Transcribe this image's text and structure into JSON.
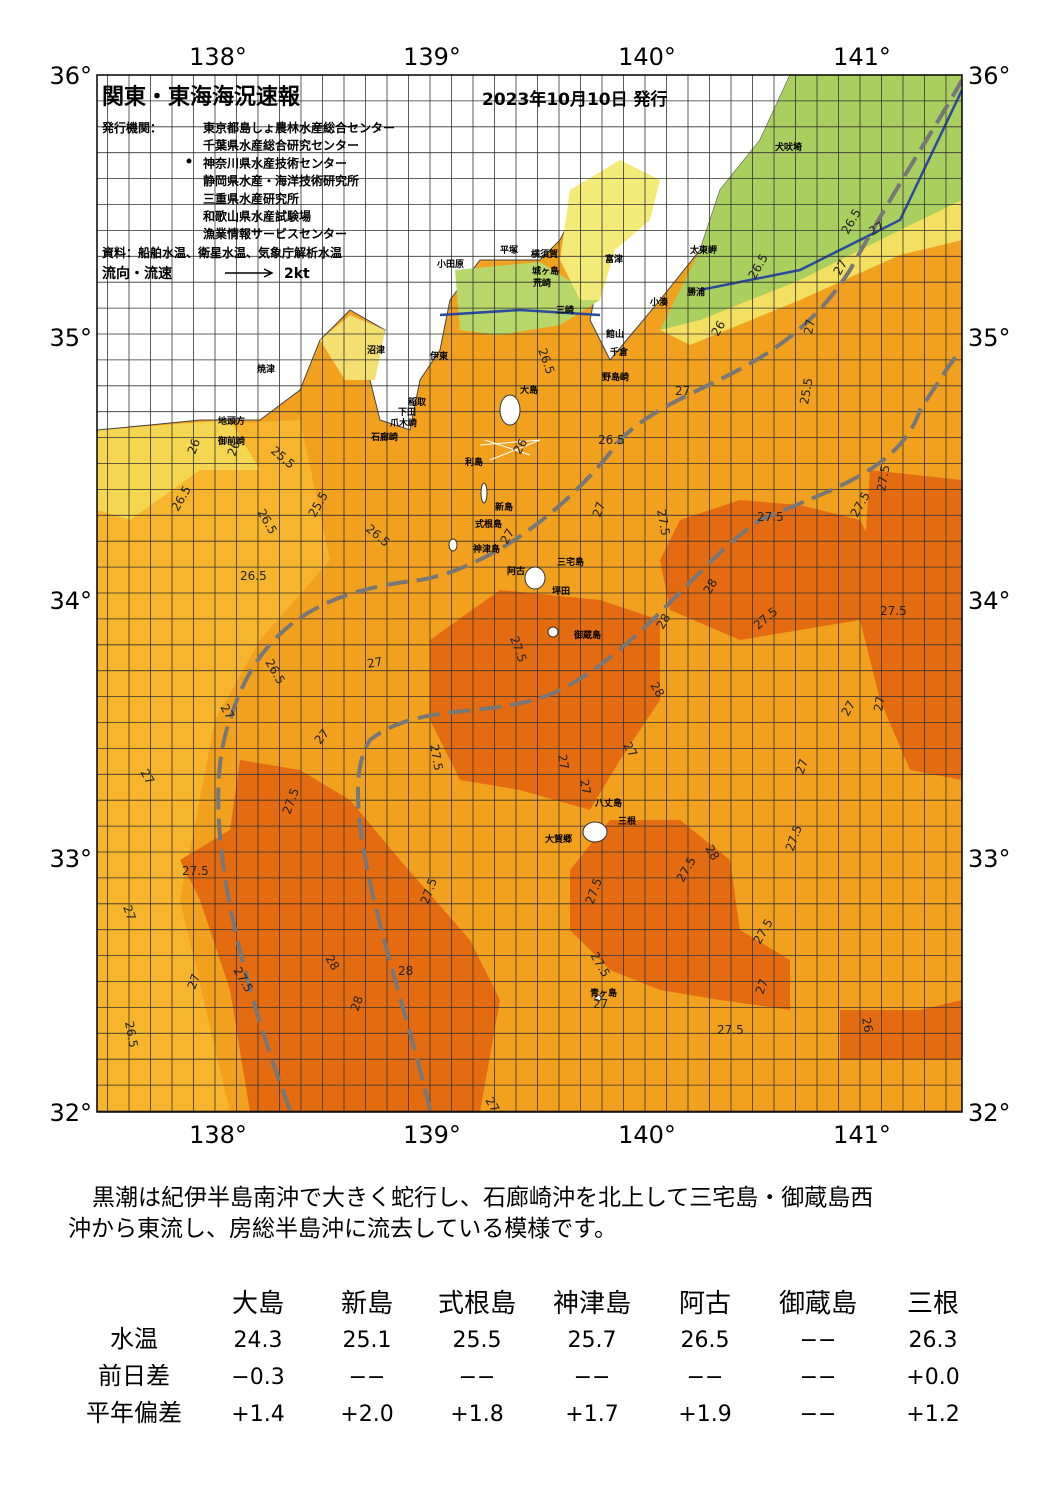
{
  "header": {
    "title": "関東・東海海況速報",
    "date": "2023年10月10日 発行",
    "issuer_label": "発行機関：",
    "issuers": [
      "東京都島しょ農林水産総合センター",
      "千葉県水産総合研究センター",
      "神奈川県水産技術センター",
      "静岡県水産・海洋技術研究所",
      "三重県水産研究所",
      "和歌山県水産試験場",
      "漁業情報サービスセンター"
    ],
    "source": "資料：船舶水温、衛星水温、気象庁解析水温",
    "flow_label": "流向・流速",
    "flow_unit": "2kt"
  },
  "map": {
    "lon_labels": [
      "138°",
      "139°",
      "140°",
      "141°"
    ],
    "lat_labels": [
      "36°",
      "35°",
      "34°",
      "33°",
      "32°"
    ],
    "places": [
      "大島",
      "利島",
      "新島",
      "式根島",
      "神津島",
      "三宅島",
      "阿古",
      "坪田",
      "御蔵島",
      "八丈島",
      "三根",
      "大賀郷",
      "青ヶ島",
      "小田原",
      "平塚",
      "城ヶ島",
      "荒崎",
      "富津",
      "三崎",
      "館山",
      "千倉",
      "野島崎",
      "小湊",
      "勝浦",
      "太東岬",
      "犬吠埼",
      "沼津",
      "伊東",
      "稲取",
      "下田",
      "爪木崎",
      "石廊崎",
      "焼津",
      "地頭方",
      "御前崎",
      "横須賀"
    ],
    "contour_labels": [
      "26",
      "26",
      "25.5",
      "26.5",
      "26.5",
      "25.5",
      "26.5",
      "26.5",
      "26.5",
      "27",
      "27",
      "27",
      "27",
      "27.5",
      "27.5",
      "27",
      "27.5",
      "27",
      "26.5",
      "28",
      "28",
      "28",
      "27.5",
      "27.5",
      "26.5",
      "26",
      "26.5",
      "27",
      "27.5",
      "27",
      "27",
      "27.5",
      "27.5",
      "27",
      "27",
      "27",
      "28",
      "28",
      "28",
      "27.5",
      "27.5",
      "27.5",
      "27.5",
      "27.5",
      "27",
      "27",
      "27",
      "27.5",
      "28",
      "27.5",
      "27.5",
      "27.5",
      "27.5",
      "27",
      "27",
      "27.5",
      "26",
      "26.5",
      "27",
      "27",
      "27",
      "25.5",
      "26.5",
      "26"
    ]
  },
  "comment": {
    "lines": [
      "黒潮は紀伊半島南沖で大きく蛇行し、石廊崎沖を北上して三宅島・御蔵島西",
      "沖から東流し、房総半島沖に流去している模様です。"
    ]
  },
  "table": {
    "header": [
      "大島",
      "新島",
      "式根島",
      "神津島",
      "阿古",
      "御蔵島",
      "三根"
    ],
    "rows": [
      [
        "水温",
        "24.3",
        "25.1",
        "25.5",
        "25.7",
        "26.5",
        "−−",
        "26.3"
      ],
      [
        "前日差",
        "−0.3",
        "−−",
        "−−",
        "−−",
        "−−",
        "−−",
        "+0.0"
      ],
      [
        "平年偏差",
        "+1.4",
        "+2.0",
        "+1.8",
        "+1.7",
        "+1.9",
        "−−",
        "+1.2"
      ]
    ]
  }
}
